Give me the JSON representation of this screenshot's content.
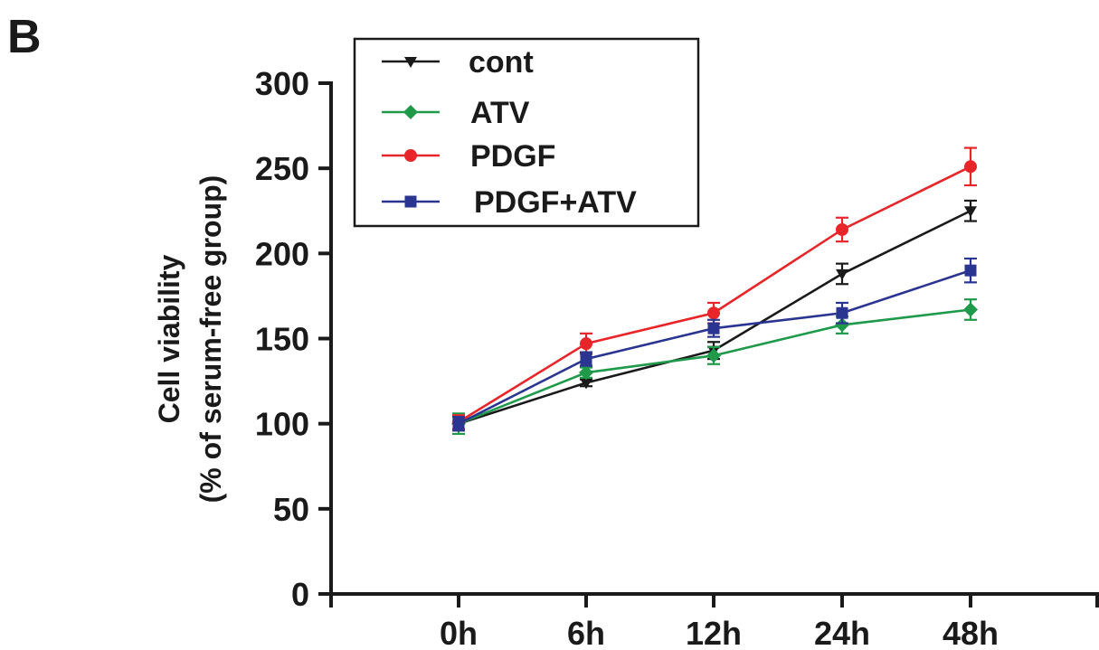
{
  "panel_label": "B",
  "chart_data": {
    "type": "line",
    "title": "",
    "xlabel": "",
    "ylabel_line1": "Cell viability",
    "ylabel_line2": "(% of serum-free group)",
    "categories": [
      "0h",
      "6h",
      "12h",
      "24h",
      "48h"
    ],
    "ylim": [
      0,
      300
    ],
    "yticks": [
      0,
      50,
      100,
      150,
      200,
      250,
      300
    ],
    "grid": false,
    "legend_position": "top-left",
    "series": [
      {
        "name": "cont",
        "color": "#1a1a1a",
        "marker": "triangle-down",
        "values": [
          100,
          124,
          143,
          188,
          225
        ],
        "errors": [
          4,
          2,
          5,
          6,
          6
        ]
      },
      {
        "name": "ATV",
        "color": "#1e9a4a",
        "marker": "diamond",
        "values": [
          100,
          130,
          140,
          158,
          167
        ],
        "errors": [
          6,
          3,
          5,
          5,
          6
        ]
      },
      {
        "name": "PDGF",
        "color": "#e8262a",
        "marker": "circle",
        "values": [
          101,
          147,
          165,
          214,
          251
        ],
        "errors": [
          4,
          6,
          6,
          7,
          11
        ]
      },
      {
        "name": "PDGF+ATV",
        "color": "#2a3592",
        "marker": "square",
        "values": [
          100,
          138,
          156,
          165,
          190
        ],
        "errors": [
          4,
          4,
          5,
          6,
          7
        ]
      }
    ]
  }
}
